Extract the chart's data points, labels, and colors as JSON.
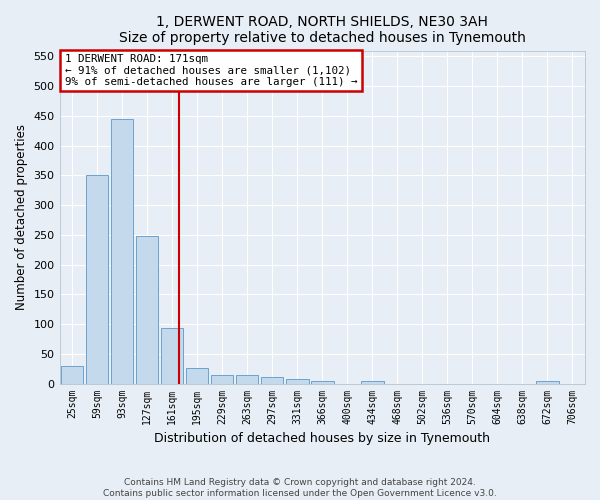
{
  "title": "1, DERWENT ROAD, NORTH SHIELDS, NE30 3AH",
  "subtitle": "Size of property relative to detached houses in Tynemouth",
  "xlabel": "Distribution of detached houses by size in Tynemouth",
  "ylabel": "Number of detached properties",
  "categories": [
    "25sqm",
    "59sqm",
    "93sqm",
    "127sqm",
    "161sqm",
    "195sqm",
    "229sqm",
    "263sqm",
    "297sqm",
    "331sqm",
    "366sqm",
    "400sqm",
    "434sqm",
    "468sqm",
    "502sqm",
    "536sqm",
    "570sqm",
    "604sqm",
    "638sqm",
    "672sqm",
    "706sqm"
  ],
  "values": [
    30,
    350,
    445,
    248,
    93,
    26,
    15,
    14,
    11,
    7,
    5,
    0,
    5,
    0,
    0,
    0,
    0,
    0,
    0,
    5,
    0
  ],
  "bar_color": "#c5d9ed",
  "bar_edgecolor": "#6ba3cc",
  "annotation_line0": "1 DERWENT ROAD: 171sqm",
  "annotation_line1": "← 91% of detached houses are smaller (1,102)",
  "annotation_line2": "9% of semi-detached houses are larger (111) →",
  "annotation_box_color": "#cc0000",
  "vline_color": "#cc0000",
  "ylim": [
    0,
    560
  ],
  "yticks": [
    0,
    50,
    100,
    150,
    200,
    250,
    300,
    350,
    400,
    450,
    500,
    550
  ],
  "background_color": "#e8eef5",
  "plot_bg_color": "#e8eef5",
  "grid_color": "#ffffff",
  "footer_line1": "Contains HM Land Registry data © Crown copyright and database right 2024.",
  "footer_line2": "Contains public sector information licensed under the Open Government Licence v3.0."
}
